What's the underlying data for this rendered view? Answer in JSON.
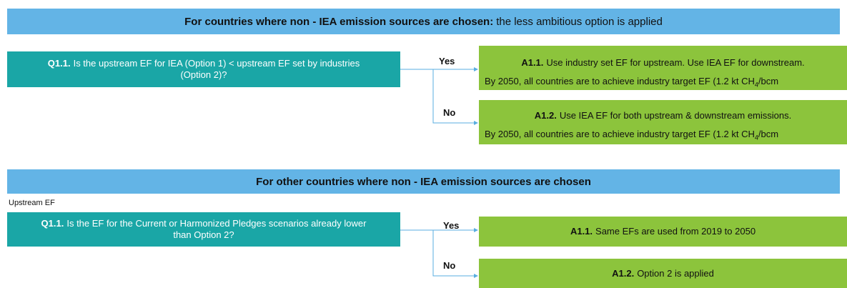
{
  "section1": {
    "header": {
      "bold": "For countries where non - IEA emission sources are chosen:",
      "rest": "the less ambitious option is applied"
    },
    "question": {
      "label": "Q1.1.",
      "text": "Is the upstream EF for IEA (Option 1) < upstream EF set by industries (Option 2)?"
    },
    "yes": "Yes",
    "no": "No",
    "answers": [
      {
        "label": "A1.1.",
        "text": "Use industry set EF for upstream. Use IEA EF for downstream.",
        "note": {
          "before": "By 2050, all countries are to achieve industry target EF (1.2 kt CH",
          "sub": "4",
          "after": "/bcm"
        }
      },
      {
        "label": "A1.2.",
        "text": "Use IEA EF for both upstream & downstream emissions.",
        "note": {
          "before": "By 2050, all countries are to achieve industry target EF (1.2 kt CH",
          "sub": "4",
          "after": "/bcm"
        }
      }
    ]
  },
  "section2": {
    "header": "For other countries where non - IEA emission sources are chosen",
    "caption": "Upstream EF",
    "question": {
      "label": "Q1.1.",
      "text": "Is the EF for the Current or Harmonized Pledges scenarios already lower than Option 2?"
    },
    "yes": "Yes",
    "no": "No",
    "answers": [
      {
        "label": "A1.1.",
        "text": "Same EFs are used from 2019 to 2050"
      },
      {
        "label": "A1.2.",
        "text": "Option 2 is applied"
      }
    ]
  }
}
